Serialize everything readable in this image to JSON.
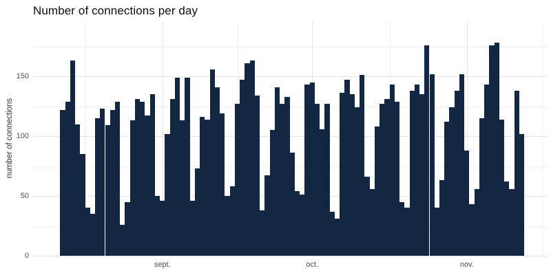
{
  "title": "Number of connections per day",
  "chart_data": {
    "type": "bar",
    "title": "Number of connections per day",
    "xlabel": "",
    "ylabel": "number of connections",
    "bar_color": "#132743",
    "background_color": "#ffffff",
    "grid": true,
    "grid_major_color": "#e3e3e3",
    "grid_minor_color": "#f0f0f0",
    "axis_text_color": "#4d4d4d",
    "legend_position": "none",
    "ylim": [
      0,
      187
    ],
    "y_major_ticks": [
      0,
      50,
      100,
      150
    ],
    "y_minor_ticks": [
      25,
      75,
      125,
      175
    ],
    "x_ticks": [
      {
        "label": "sept.",
        "day": 20
      },
      {
        "label": "oct.",
        "day": 50
      },
      {
        "label": "nov.",
        "day": 81
      }
    ],
    "x_minor_days": [
      4.5,
      35,
      65.5,
      96
    ],
    "values": [
      122,
      129,
      163,
      110,
      85,
      40,
      35,
      115,
      123,
      109,
      122,
      129,
      26,
      45,
      113,
      131,
      129,
      117,
      135,
      50,
      46,
      102,
      131,
      149,
      113,
      149,
      46,
      73,
      116,
      114,
      156,
      141,
      119,
      50,
      58,
      127,
      147,
      161,
      163,
      134,
      38,
      67,
      105,
      141,
      127,
      133,
      86,
      54,
      51,
      143,
      145,
      127,
      106,
      127,
      37,
      31,
      136,
      147,
      135,
      124,
      151,
      66,
      56,
      108,
      127,
      131,
      143,
      129,
      45,
      40,
      138,
      143,
      135,
      176,
      152,
      40,
      63,
      112,
      124,
      138,
      152,
      88,
      43,
      56,
      115,
      143,
      176,
      178,
      114,
      62,
      56,
      138,
      102
    ]
  }
}
